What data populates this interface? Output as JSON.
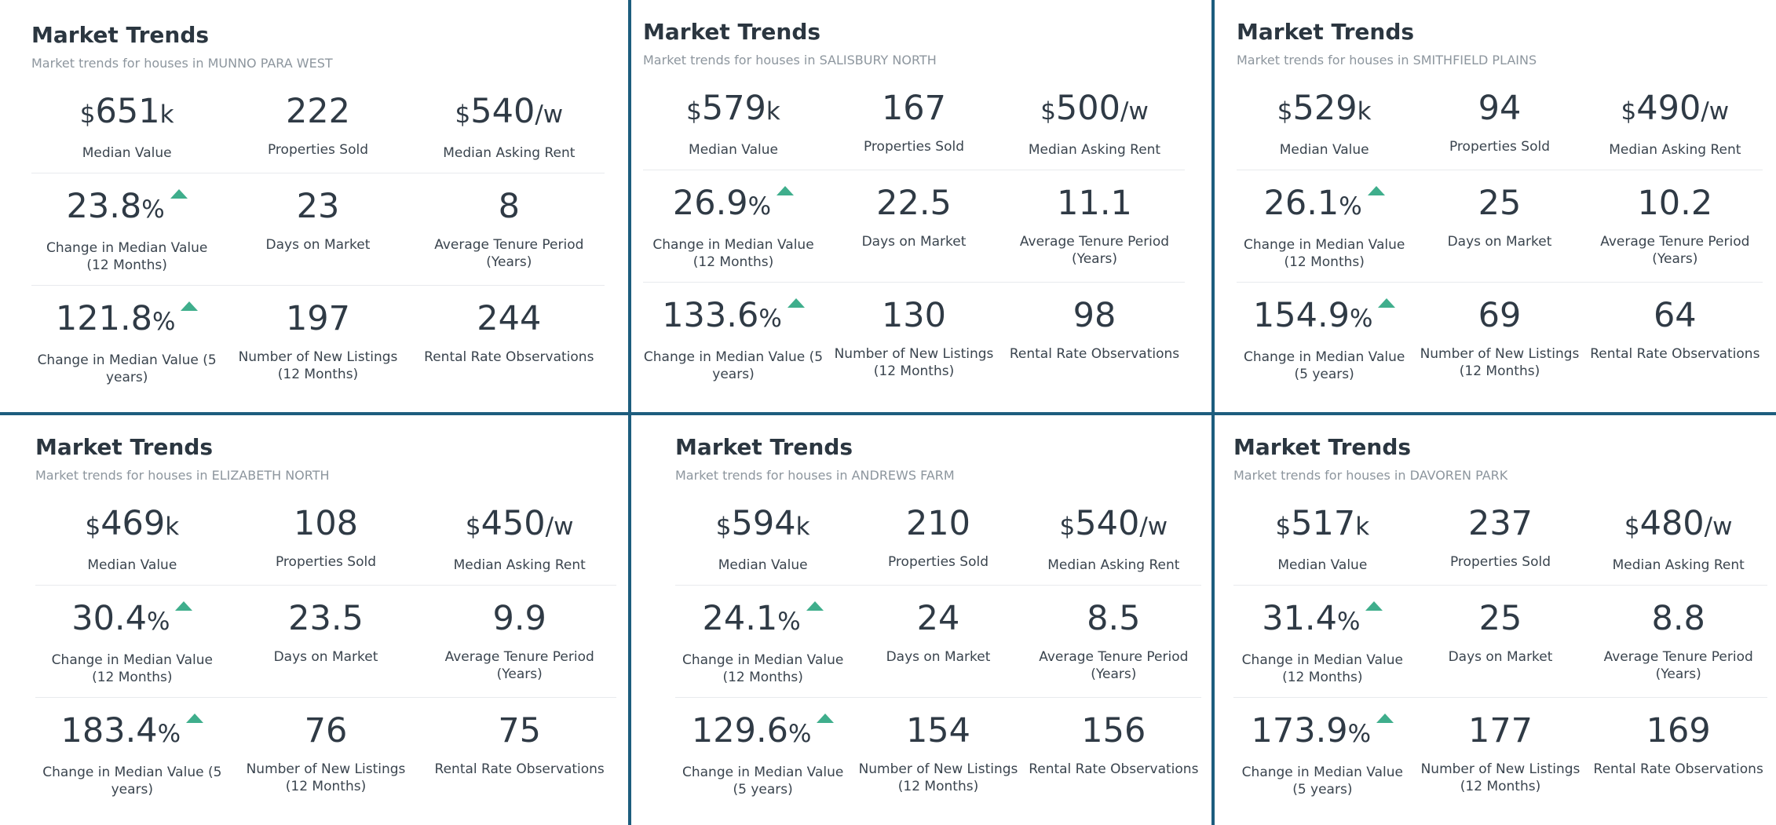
{
  "panels": [
    {
      "title": "Market Trends",
      "subtitle": "Market trends for houses in MUNNO PARA WEST",
      "median_value": "651",
      "median_value_currency": "$",
      "median_value_unit": "k",
      "median_value_label": "Median Value",
      "properties_sold": "222",
      "properties_sold_label": "Properties Sold",
      "median_rent": "540",
      "median_rent_currency": "$",
      "median_rent_unit": "/w",
      "median_rent_label": "Median Asking Rent",
      "change_12m": "23.8",
      "change_12m_unit": "%",
      "change_12m_label": "Change in Median Value (12 Months)",
      "days_on_market": "23",
      "days_on_market_label": "Days on Market",
      "tenure": "8",
      "tenure_label": "Average Tenure Period (Years)",
      "change_5y": "121.8",
      "change_5y_unit": "%",
      "change_5y_label": "Change in Median Value (5 years)",
      "new_listings": "197",
      "new_listings_label": "Number of New Listings (12 Months)",
      "rental_obs": "244",
      "rental_obs_label": "Rental Rate Observations"
    },
    {
      "title": "Market Trends",
      "subtitle": "Market trends for houses in SALISBURY NORTH",
      "median_value": "579",
      "median_value_currency": "$",
      "median_value_unit": "k",
      "median_value_label": "Median Value",
      "properties_sold": "167",
      "properties_sold_label": "Properties Sold",
      "median_rent": "500",
      "median_rent_currency": "$",
      "median_rent_unit": "/w",
      "median_rent_label": "Median Asking Rent",
      "change_12m": "26.9",
      "change_12m_unit": "%",
      "change_12m_label": "Change in Median Value (12 Months)",
      "days_on_market": "22.5",
      "days_on_market_label": "Days on Market",
      "tenure": "11.1",
      "tenure_label": "Average Tenure Period (Years)",
      "change_5y": "133.6",
      "change_5y_unit": "%",
      "change_5y_label": "Change in Median Value (5 years)",
      "new_listings": "130",
      "new_listings_label": "Number of New Listings (12 Months)",
      "rental_obs": "98",
      "rental_obs_label": "Rental Rate Observations"
    },
    {
      "title": "Market Trends",
      "subtitle": "Market trends for houses in SMITHFIELD PLAINS",
      "median_value": "529",
      "median_value_currency": "$",
      "median_value_unit": "k",
      "median_value_label": "Median Value",
      "properties_sold": "94",
      "properties_sold_label": "Properties Sold",
      "median_rent": "490",
      "median_rent_currency": "$",
      "median_rent_unit": "/w",
      "median_rent_label": "Median Asking Rent",
      "change_12m": "26.1",
      "change_12m_unit": "%",
      "change_12m_label": "Change in Median Value (12 Months)",
      "days_on_market": "25",
      "days_on_market_label": "Days on Market",
      "tenure": "10.2",
      "tenure_label": "Average Tenure Period (Years)",
      "change_5y": "154.9",
      "change_5y_unit": "%",
      "change_5y_label": "Change in Median Value (5 years)",
      "new_listings": "69",
      "new_listings_label": "Number of New Listings (12 Months)",
      "rental_obs": "64",
      "rental_obs_label": "Rental Rate Observations"
    },
    {
      "title": "Market Trends",
      "subtitle": "Market trends for houses in ELIZABETH NORTH",
      "median_value": "469",
      "median_value_currency": "$",
      "median_value_unit": "k",
      "median_value_label": "Median Value",
      "properties_sold": "108",
      "properties_sold_label": "Properties Sold",
      "median_rent": "450",
      "median_rent_currency": "$",
      "median_rent_unit": "/w",
      "median_rent_label": "Median Asking Rent",
      "change_12m": "30.4",
      "change_12m_unit": "%",
      "change_12m_label": "Change in Median Value (12 Months)",
      "days_on_market": "23.5",
      "days_on_market_label": "Days on Market",
      "tenure": "9.9",
      "tenure_label": "Average Tenure Period (Years)",
      "change_5y": "183.4",
      "change_5y_unit": "%",
      "change_5y_label": "Change in Median Value (5 years)",
      "new_listings": "76",
      "new_listings_label": "Number of New Listings (12 Months)",
      "rental_obs": "75",
      "rental_obs_label": "Rental Rate Observations"
    },
    {
      "title": "Market Trends",
      "subtitle": "Market trends for houses in ANDREWS FARM",
      "median_value": "594",
      "median_value_currency": "$",
      "median_value_unit": "k",
      "median_value_label": "Median Value",
      "properties_sold": "210",
      "properties_sold_label": "Properties Sold",
      "median_rent": "540",
      "median_rent_currency": "$",
      "median_rent_unit": "/w",
      "median_rent_label": "Median Asking Rent",
      "change_12m": "24.1",
      "change_12m_unit": "%",
      "change_12m_label": "Change in Median Value (12 Months)",
      "days_on_market": "24",
      "days_on_market_label": "Days on Market",
      "tenure": "8.5",
      "tenure_label": "Average Tenure Period (Years)",
      "change_5y": "129.6",
      "change_5y_unit": "%",
      "change_5y_label": "Change in Median Value (5 years)",
      "new_listings": "154",
      "new_listings_label": "Number of New Listings (12 Months)",
      "rental_obs": "156",
      "rental_obs_label": "Rental Rate Observations"
    },
    {
      "title": "Market Trends",
      "subtitle": "Market trends for houses in DAVOREN PARK",
      "median_value": "517",
      "median_value_currency": "$",
      "median_value_unit": "k",
      "median_value_label": "Median Value",
      "properties_sold": "237",
      "properties_sold_label": "Properties Sold",
      "median_rent": "480",
      "median_rent_currency": "$",
      "median_rent_unit": "/w",
      "median_rent_label": "Median Asking Rent",
      "change_12m": "31.4",
      "change_12m_unit": "%",
      "change_12m_label": "Change in Median Value (12 Months)",
      "days_on_market": "25",
      "days_on_market_label": "Days on Market",
      "tenure": "8.8",
      "tenure_label": "Average Tenure Period (Years)",
      "change_5y": "173.9",
      "change_5y_unit": "%",
      "change_5y_label": "Change in Median Value (5 years)",
      "new_listings": "177",
      "new_listings_label": "Number of New Listings (12 Months)",
      "rental_obs": "169",
      "rental_obs_label": "Rental Rate Observations"
    }
  ],
  "colors": {
    "divider": "#1d5d7e",
    "arrow_up": "#3fae8c",
    "title": "#2b3640",
    "subtitle": "#8d969e"
  },
  "icons": {
    "trend": "arrow-up-icon"
  }
}
